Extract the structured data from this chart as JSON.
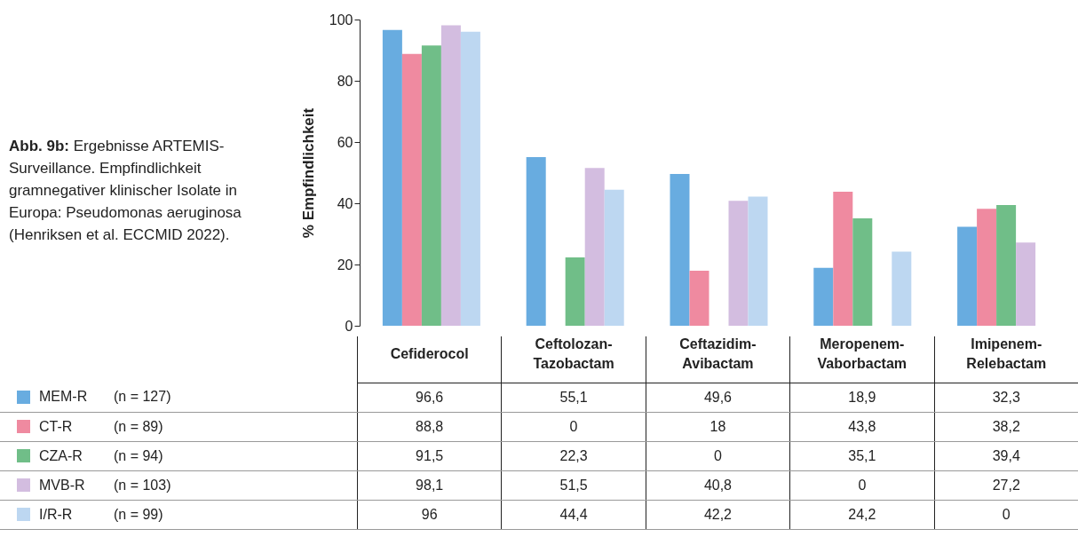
{
  "chart_data": {
    "type": "bar",
    "title": "Abb. 9b:",
    "subtitle": "Ergebnisse ARTEMIS-Surveillance. Empfindlichkeit gramnegativer klinischer Isolate in Europa: Pseudomonas aeruginosa (Henriksen et al. ECCMID 2022).",
    "ylabel": "% Empfindlichkeit",
    "categories": [
      "Cefiderocol",
      "Ceftolozan-Tazobactam",
      "Ceftazidim-Avibactam",
      "Meropenem-Vaborbactam",
      "Imipenem-Relebactam"
    ],
    "series": [
      {
        "name": "MEM-R (n = 127)",
        "color": "#68ace0",
        "values": [
          96.6,
          55.1,
          49.6,
          18.9,
          32.3
        ],
        "value_labels": [
          "96,6",
          "55,1",
          "49,6",
          "18,9",
          "32,3"
        ]
      },
      {
        "name": "CT-R (n = 89)",
        "color": "#ef8aa0",
        "values": [
          88.8,
          0,
          18,
          43.8,
          38.2
        ],
        "value_labels": [
          "88,8",
          "0",
          "18",
          "43,8",
          "38,2"
        ]
      },
      {
        "name": "CZA-R (n = 94)",
        "color": "#70be88",
        "values": [
          91.5,
          22.3,
          0,
          35.1,
          39.4
        ],
        "value_labels": [
          "91,5",
          "22,3",
          "0",
          "35,1",
          "39,4"
        ]
      },
      {
        "name": "MVB-R (n = 103)",
        "color": "#d3bde0",
        "values": [
          98.1,
          51.5,
          40.8,
          0,
          27.2
        ],
        "value_labels": [
          "98,1",
          "51,5",
          "40,8",
          "0",
          "27,2"
        ]
      },
      {
        "name": "I/R-R (n = 99)",
        "color": "#bdd7f1",
        "values": [
          96,
          44.4,
          42.2,
          24.2,
          0
        ],
        "value_labels": [
          "96",
          "44,4",
          "42,2",
          "24,2",
          "0"
        ]
      }
    ],
    "ylim": [
      0,
      100
    ],
    "yticks": [
      0,
      20,
      40,
      60,
      80,
      100
    ],
    "grid": false,
    "legend": "bottom"
  }
}
